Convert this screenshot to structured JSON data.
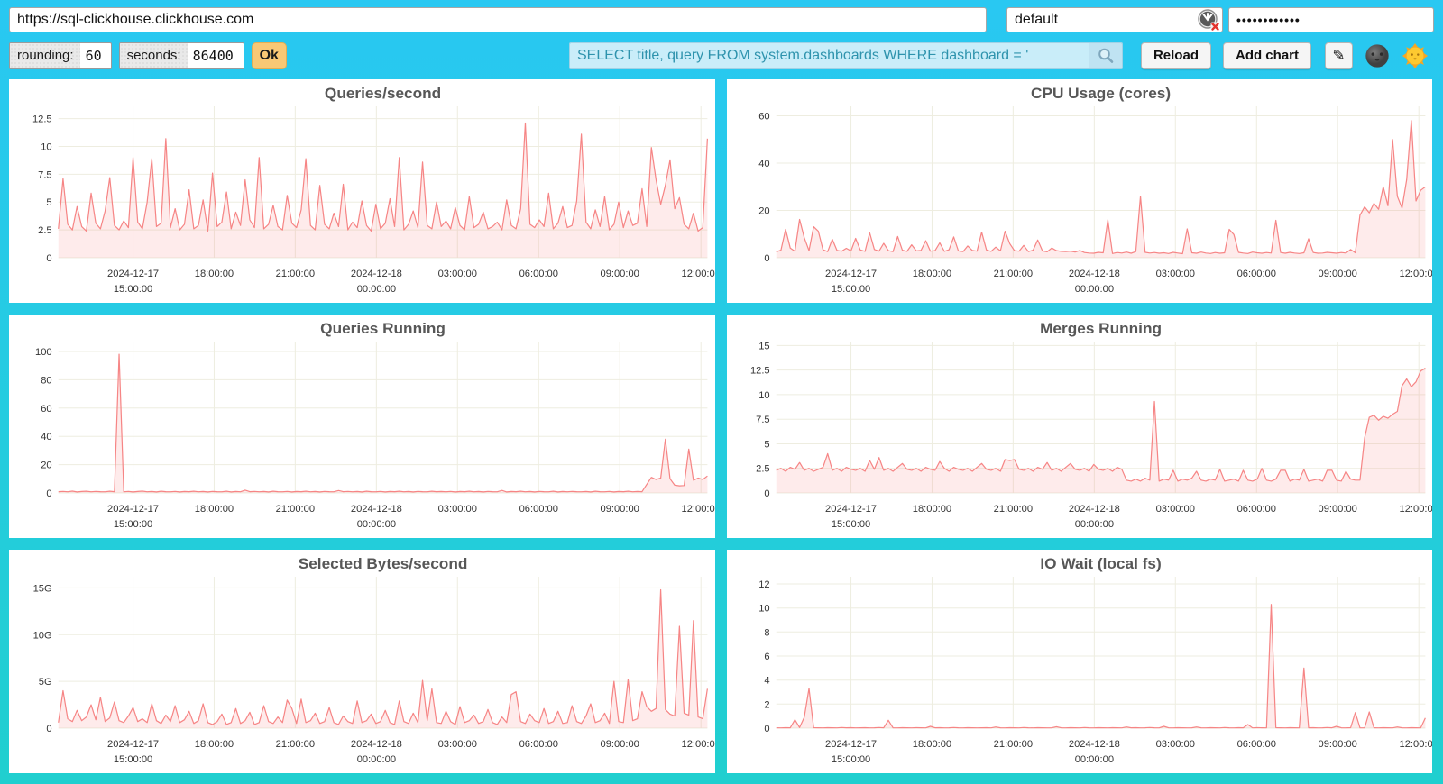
{
  "colors": {
    "background_top": "#29c8f2",
    "background_bottom": "#20cfcf",
    "line": "#f68585",
    "fill": "rgba(248,128,128,0.16)",
    "grid": "#eeede0",
    "title": "#575757",
    "ok_button": "#f9c875",
    "search_bg": "#c9edf9",
    "search_text": "#2e93ad"
  },
  "toolbar": {
    "url": {
      "value": "https://sql-clickhouse.clickhouse.com"
    },
    "user": {
      "value": "default",
      "icon": "user-mask-icon",
      "status": "not-authenticated"
    },
    "password": {
      "value": "••••••••••••"
    },
    "rounding": {
      "label": "rounding:",
      "value": "60"
    },
    "seconds": {
      "label": "seconds:",
      "value": "86400"
    },
    "ok_label": "Ok",
    "search": {
      "value": "SELECT title, query FROM system.dashboards WHERE dashboard = '"
    },
    "search_icon": "magnifier-icon",
    "reload_label": "Reload",
    "add_chart_label": "Add chart",
    "edit_icon": "✎",
    "dark_theme_icon": "moon-face-icon",
    "light_theme_icon": "sun-face-icon"
  },
  "x_axis": {
    "ticks": [
      {
        "f": 0.115,
        "line1": "2024-12-17",
        "line2": "15:00:00"
      },
      {
        "f": 0.24,
        "line1": "18:00:00"
      },
      {
        "f": 0.365,
        "line1": "21:00:00"
      },
      {
        "f": 0.49,
        "line1": "2024-12-18",
        "line2": "00:00:00"
      },
      {
        "f": 0.615,
        "line1": "03:00:00"
      },
      {
        "f": 0.74,
        "line1": "06:00:00"
      },
      {
        "f": 0.865,
        "line1": "09:00:00"
      },
      {
        "f": 0.99,
        "line1": "12:00:00"
      }
    ]
  },
  "charts": [
    {
      "title": "Queries/second",
      "type": "area",
      "y_ticks": [
        {
          "v": 0,
          "label": "0"
        },
        {
          "v": 2.5,
          "label": "2.5"
        },
        {
          "v": 5,
          "label": "5"
        },
        {
          "v": 7.5,
          "label": "7.5"
        },
        {
          "v": 10,
          "label": "10"
        },
        {
          "v": 12.5,
          "label": "12.5"
        }
      ],
      "ymax": 13.6,
      "values": [
        2.6,
        7.1,
        3.0,
        2.5,
        4.6,
        2.8,
        2.4,
        5.8,
        3.1,
        2.6,
        4.2,
        7.2,
        2.9,
        2.5,
        3.3,
        2.7,
        9.0,
        3.2,
        2.6,
        5.0,
        8.9,
        2.8,
        3.1,
        10.7,
        2.7,
        4.4,
        2.5,
        3.0,
        6.1,
        2.6,
        2.9,
        5.2,
        2.4,
        7.6,
        2.8,
        3.2,
        5.9,
        2.6,
        4.1,
        2.9,
        7.0,
        3.4,
        2.7,
        9.0,
        2.6,
        3.0,
        4.7,
        2.8,
        2.5,
        5.6,
        3.1,
        2.7,
        4.3,
        8.9,
        2.9,
        2.5,
        6.5,
        3.0,
        2.6,
        4.0,
        2.8,
        6.6,
        2.5,
        3.2,
        2.7,
        5.1,
        2.9,
        2.4,
        4.8,
        2.6,
        3.1,
        5.3,
        2.8,
        9.0,
        2.5,
        3.0,
        4.2,
        2.7,
        8.6,
        2.9,
        2.6,
        5.0,
        2.8,
        3.3,
        2.6,
        4.5,
        2.9,
        2.5,
        5.5,
        2.7,
        3.0,
        4.1,
        2.6,
        2.8,
        3.2,
        2.5,
        5.2,
        2.9,
        2.6,
        4.4,
        12.1,
        3.0,
        2.7,
        3.4,
        2.8,
        5.8,
        2.6,
        3.1,
        4.6,
        2.7,
        2.9,
        5.1,
        11.1,
        3.2,
        2.6,
        4.3,
        2.8,
        5.5,
        2.5,
        3.0,
        5.0,
        2.7,
        4.2,
        2.9,
        3.1,
        6.2,
        2.8,
        9.9,
        7.0,
        4.8,
        6.5,
        8.8,
        4.4,
        5.4,
        3.0,
        2.6,
        4.0,
        2.4,
        2.7,
        10.7
      ]
    },
    {
      "title": "CPU Usage (cores)",
      "type": "area",
      "y_ticks": [
        {
          "v": 0,
          "label": "0"
        },
        {
          "v": 20,
          "label": "20"
        },
        {
          "v": 40,
          "label": "40"
        },
        {
          "v": 60,
          "label": "60"
        }
      ],
      "ymax": 64,
      "values": [
        2.5,
        3.2,
        12.0,
        4.1,
        2.8,
        16.2,
        8.5,
        3.0,
        13.1,
        11.2,
        3.4,
        2.6,
        7.8,
        3.1,
        2.8,
        4.0,
        2.9,
        8.2,
        3.3,
        2.7,
        10.5,
        3.5,
        2.8,
        6.1,
        3.0,
        2.6,
        9.0,
        3.2,
        2.7,
        5.5,
        2.9,
        3.1,
        7.2,
        2.8,
        3.0,
        6.3,
        2.7,
        3.4,
        8.8,
        2.9,
        2.6,
        5.0,
        3.1,
        2.8,
        10.8,
        3.3,
        2.7,
        4.5,
        2.9,
        11.2,
        6.0,
        3.0,
        2.8,
        5.2,
        2.6,
        3.2,
        7.5,
        2.9,
        2.5,
        4.1,
        3.0,
        2.7,
        2.6,
        2.8,
        2.4,
        3.1,
        2.2,
        2.0,
        1.9,
        2.3,
        2.1,
        16.0,
        1.8,
        2.2,
        2.0,
        2.4,
        1.9,
        2.6,
        26.0,
        2.3,
        2.0,
        2.2,
        1.9,
        2.1,
        1.8,
        2.3,
        2.0,
        1.7,
        12.2,
        2.1,
        1.9,
        2.4,
        2.0,
        1.8,
        2.2,
        1.9,
        2.1,
        12.0,
        9.8,
        2.3,
        2.0,
        1.8,
        2.4,
        2.1,
        1.9,
        2.2,
        2.0,
        15.8,
        2.2,
        1.9,
        2.3,
        2.0,
        1.8,
        2.1,
        8.0,
        2.2,
        1.9,
        2.0,
        2.3,
        2.1,
        1.9,
        2.2,
        2.0,
        3.5,
        2.1,
        18.0,
        21.5,
        19.0,
        23.0,
        20.5,
        30.0,
        22.0,
        50.0,
        26.0,
        21.0,
        33.0,
        58.0,
        24.0,
        28.5,
        30.0
      ]
    },
    {
      "title": "Queries Running",
      "type": "area",
      "y_ticks": [
        {
          "v": 0,
          "label": "0"
        },
        {
          "v": 20,
          "label": "20"
        },
        {
          "v": 40,
          "label": "40"
        },
        {
          "v": 60,
          "label": "60"
        },
        {
          "v": 80,
          "label": "80"
        },
        {
          "v": 100,
          "label": "100"
        }
      ],
      "ymax": 107,
      "values": [
        0.9,
        1.1,
        0.8,
        1.3,
        0.7,
        1.0,
        1.2,
        0.8,
        1.1,
        0.9,
        0.8,
        1.2,
        0.9,
        98.0,
        0.8,
        1.1,
        0.7,
        1.0,
        1.3,
        0.8,
        1.0,
        0.7,
        1.2,
        0.9,
        0.8,
        1.1,
        0.7,
        1.0,
        0.9,
        1.2,
        0.8,
        1.0,
        0.7,
        1.1,
        0.9,
        0.8,
        1.2,
        0.7,
        1.0,
        0.8,
        2.0,
        0.9,
        1.1,
        0.8,
        1.0,
        0.7,
        1.2,
        0.9,
        0.8,
        1.1,
        0.7,
        1.0,
        0.9,
        1.2,
        0.8,
        1.0,
        0.7,
        1.1,
        0.9,
        0.8,
        1.7,
        0.9,
        1.1,
        0.8,
        1.0,
        0.7,
        1.2,
        0.9,
        0.8,
        1.1,
        0.7,
        1.0,
        0.9,
        1.2,
        0.8,
        1.0,
        0.7,
        1.1,
        0.9,
        0.8,
        1.2,
        0.9,
        1.0,
        0.8,
        1.1,
        0.7,
        1.0,
        0.9,
        1.2,
        0.8,
        1.0,
        0.7,
        1.1,
        0.9,
        0.8,
        1.8,
        0.7,
        1.0,
        0.9,
        1.2,
        0.8,
        1.0,
        0.7,
        1.1,
        0.9,
        0.8,
        1.2,
        0.7,
        1.0,
        0.8,
        1.1,
        0.9,
        0.8,
        1.0,
        0.7,
        1.2,
        0.9,
        0.8,
        1.1,
        0.7,
        1.0,
        0.9,
        1.2,
        0.8,
        1.0,
        0.9,
        6.0,
        11.0,
        9.5,
        10.5,
        38.0,
        10.0,
        5.5,
        5.0,
        5.2,
        31.0,
        9.0,
        10.5,
        9.5,
        12.0
      ]
    },
    {
      "title": "Merges Running",
      "type": "area",
      "y_ticks": [
        {
          "v": 0,
          "label": "0"
        },
        {
          "v": 2.5,
          "label": "2.5"
        },
        {
          "v": 5,
          "label": "5"
        },
        {
          "v": 7.5,
          "label": "7.5"
        },
        {
          "v": 10,
          "label": "10"
        },
        {
          "v": 12.5,
          "label": "12.5"
        },
        {
          "v": 15,
          "label": "15"
        }
      ],
      "ymax": 15.4,
      "values": [
        2.3,
        2.5,
        2.2,
        2.6,
        2.4,
        3.1,
        2.3,
        2.5,
        2.2,
        2.4,
        2.6,
        4.0,
        2.3,
        2.5,
        2.2,
        2.6,
        2.4,
        2.3,
        2.5,
        2.2,
        3.3,
        2.4,
        3.6,
        2.3,
        2.5,
        2.2,
        2.6,
        3.0,
        2.4,
        2.3,
        2.5,
        2.2,
        2.6,
        2.4,
        2.3,
        3.2,
        2.5,
        2.2,
        2.6,
        2.4,
        2.3,
        2.5,
        2.2,
        2.6,
        3.0,
        2.4,
        2.3,
        2.5,
        2.2,
        3.4,
        3.3,
        3.4,
        2.4,
        2.3,
        2.5,
        2.2,
        2.6,
        2.4,
        3.1,
        2.3,
        2.5,
        2.2,
        2.6,
        3.0,
        2.4,
        2.3,
        2.5,
        2.2,
        2.9,
        2.4,
        2.3,
        2.5,
        2.2,
        2.6,
        2.4,
        1.3,
        1.2,
        1.4,
        1.2,
        1.5,
        1.3,
        9.3,
        1.2,
        1.4,
        1.3,
        2.3,
        1.2,
        1.4,
        1.3,
        1.5,
        2.2,
        1.3,
        1.2,
        1.4,
        1.3,
        2.4,
        1.2,
        1.3,
        1.4,
        1.2,
        2.3,
        1.3,
        1.2,
        1.4,
        2.5,
        1.3,
        1.2,
        1.4,
        2.3,
        2.3,
        1.2,
        1.4,
        1.3,
        2.4,
        1.2,
        1.3,
        1.4,
        1.2,
        2.3,
        2.3,
        1.3,
        1.2,
        2.2,
        1.4,
        1.3,
        1.3,
        5.6,
        7.7,
        7.9,
        7.4,
        7.8,
        7.6,
        8.0,
        8.3,
        10.9,
        11.6,
        10.8,
        11.3,
        12.4,
        12.7
      ]
    },
    {
      "title": "Selected Bytes/second",
      "type": "area",
      "y_ticks": [
        {
          "v": 0,
          "label": "0"
        },
        {
          "v": 5,
          "label": "5G"
        },
        {
          "v": 10,
          "label": "10G"
        },
        {
          "v": 15,
          "label": "15G"
        }
      ],
      "ymax": 16.2,
      "values": [
        0.6,
        4.0,
        1.0,
        0.7,
        1.9,
        0.8,
        1.2,
        2.5,
        0.9,
        3.3,
        0.7,
        1.1,
        2.8,
        0.8,
        0.6,
        1.3,
        2.2,
        0.7,
        1.0,
        0.6,
        2.6,
        0.8,
        0.5,
        1.4,
        0.7,
        2.4,
        0.6,
        0.9,
        1.8,
        0.5,
        0.8,
        2.6,
        0.6,
        0.4,
        0.7,
        1.5,
        0.4,
        0.6,
        2.1,
        0.5,
        0.8,
        1.7,
        0.4,
        0.6,
        2.4,
        0.7,
        0.5,
        1.2,
        0.6,
        3.0,
        2.1,
        0.5,
        3.1,
        0.6,
        0.8,
        1.6,
        0.5,
        0.7,
        2.2,
        0.6,
        0.4,
        1.3,
        0.7,
        0.5,
        2.9,
        0.6,
        0.8,
        1.5,
        0.5,
        0.7,
        1.9,
        0.6,
        0.4,
        2.9,
        0.7,
        0.5,
        1.6,
        0.6,
        5.1,
        0.8,
        4.2,
        0.6,
        0.5,
        1.8,
        0.7,
        0.4,
        2.3,
        0.6,
        0.8,
        1.4,
        0.5,
        0.7,
        2.0,
        0.6,
        0.4,
        1.2,
        0.6,
        3.6,
        3.9,
        0.7,
        0.5,
        1.5,
        0.8,
        0.6,
        2.1,
        0.5,
        0.7,
        1.8,
        0.5,
        0.6,
        2.4,
        0.7,
        0.5,
        1.3,
        2.6,
        0.6,
        0.8,
        1.6,
        0.5,
        5.0,
        0.7,
        0.6,
        5.2,
        0.8,
        1.0,
        3.9,
        2.3,
        1.8,
        2.1,
        14.8,
        2.0,
        1.5,
        1.3,
        10.9,
        1.6,
        1.4,
        11.5,
        1.2,
        1.0,
        4.2
      ]
    },
    {
      "title": "IO Wait (local fs)",
      "type": "area",
      "y_ticks": [
        {
          "v": 0,
          "label": "0"
        },
        {
          "v": 2,
          "label": "2"
        },
        {
          "v": 4,
          "label": "4"
        },
        {
          "v": 6,
          "label": "6"
        },
        {
          "v": 8,
          "label": "8"
        },
        {
          "v": 10,
          "label": "10"
        },
        {
          "v": 12,
          "label": "12"
        }
      ],
      "ymax": 12.6,
      "values": [
        0.03,
        0.02,
        0.04,
        0.03,
        0.7,
        0.05,
        0.9,
        3.3,
        0.04,
        0.03,
        0.02,
        0.04,
        0.03,
        0.02,
        0.05,
        0.03,
        0.04,
        0.02,
        0.03,
        0.04,
        0.02,
        0.03,
        0.05,
        0.03,
        0.65,
        0.03,
        0.02,
        0.04,
        0.03,
        0.02,
        0.04,
        0.03,
        0.02,
        0.15,
        0.03,
        0.04,
        0.02,
        0.03,
        0.05,
        0.03,
        0.02,
        0.04,
        0.03,
        0.02,
        0.03,
        0.04,
        0.02,
        0.1,
        0.03,
        0.02,
        0.04,
        0.03,
        0.02,
        0.05,
        0.03,
        0.02,
        0.04,
        0.03,
        0.02,
        0.03,
        0.12,
        0.03,
        0.02,
        0.04,
        0.03,
        0.02,
        0.05,
        0.03,
        0.02,
        0.04,
        0.03,
        0.02,
        0.04,
        0.03,
        0.02,
        0.1,
        0.03,
        0.04,
        0.02,
        0.03,
        0.05,
        0.03,
        0.02,
        0.15,
        0.03,
        0.02,
        0.04,
        0.03,
        0.02,
        0.03,
        0.1,
        0.03,
        0.02,
        0.04,
        0.03,
        0.02,
        0.05,
        0.03,
        0.02,
        0.04,
        0.03,
        0.3,
        0.02,
        0.04,
        0.03,
        0.02,
        10.3,
        0.04,
        0.03,
        0.02,
        0.04,
        0.03,
        0.02,
        5.0,
        0.03,
        0.04,
        0.02,
        0.03,
        0.05,
        0.03,
        0.15,
        0.03,
        0.02,
        0.04,
        1.3,
        0.03,
        0.02,
        1.35,
        0.03,
        0.02,
        0.04,
        0.03,
        0.02,
        0.1,
        0.03,
        0.02,
        0.04,
        0.03,
        0.02,
        0.85
      ]
    }
  ]
}
